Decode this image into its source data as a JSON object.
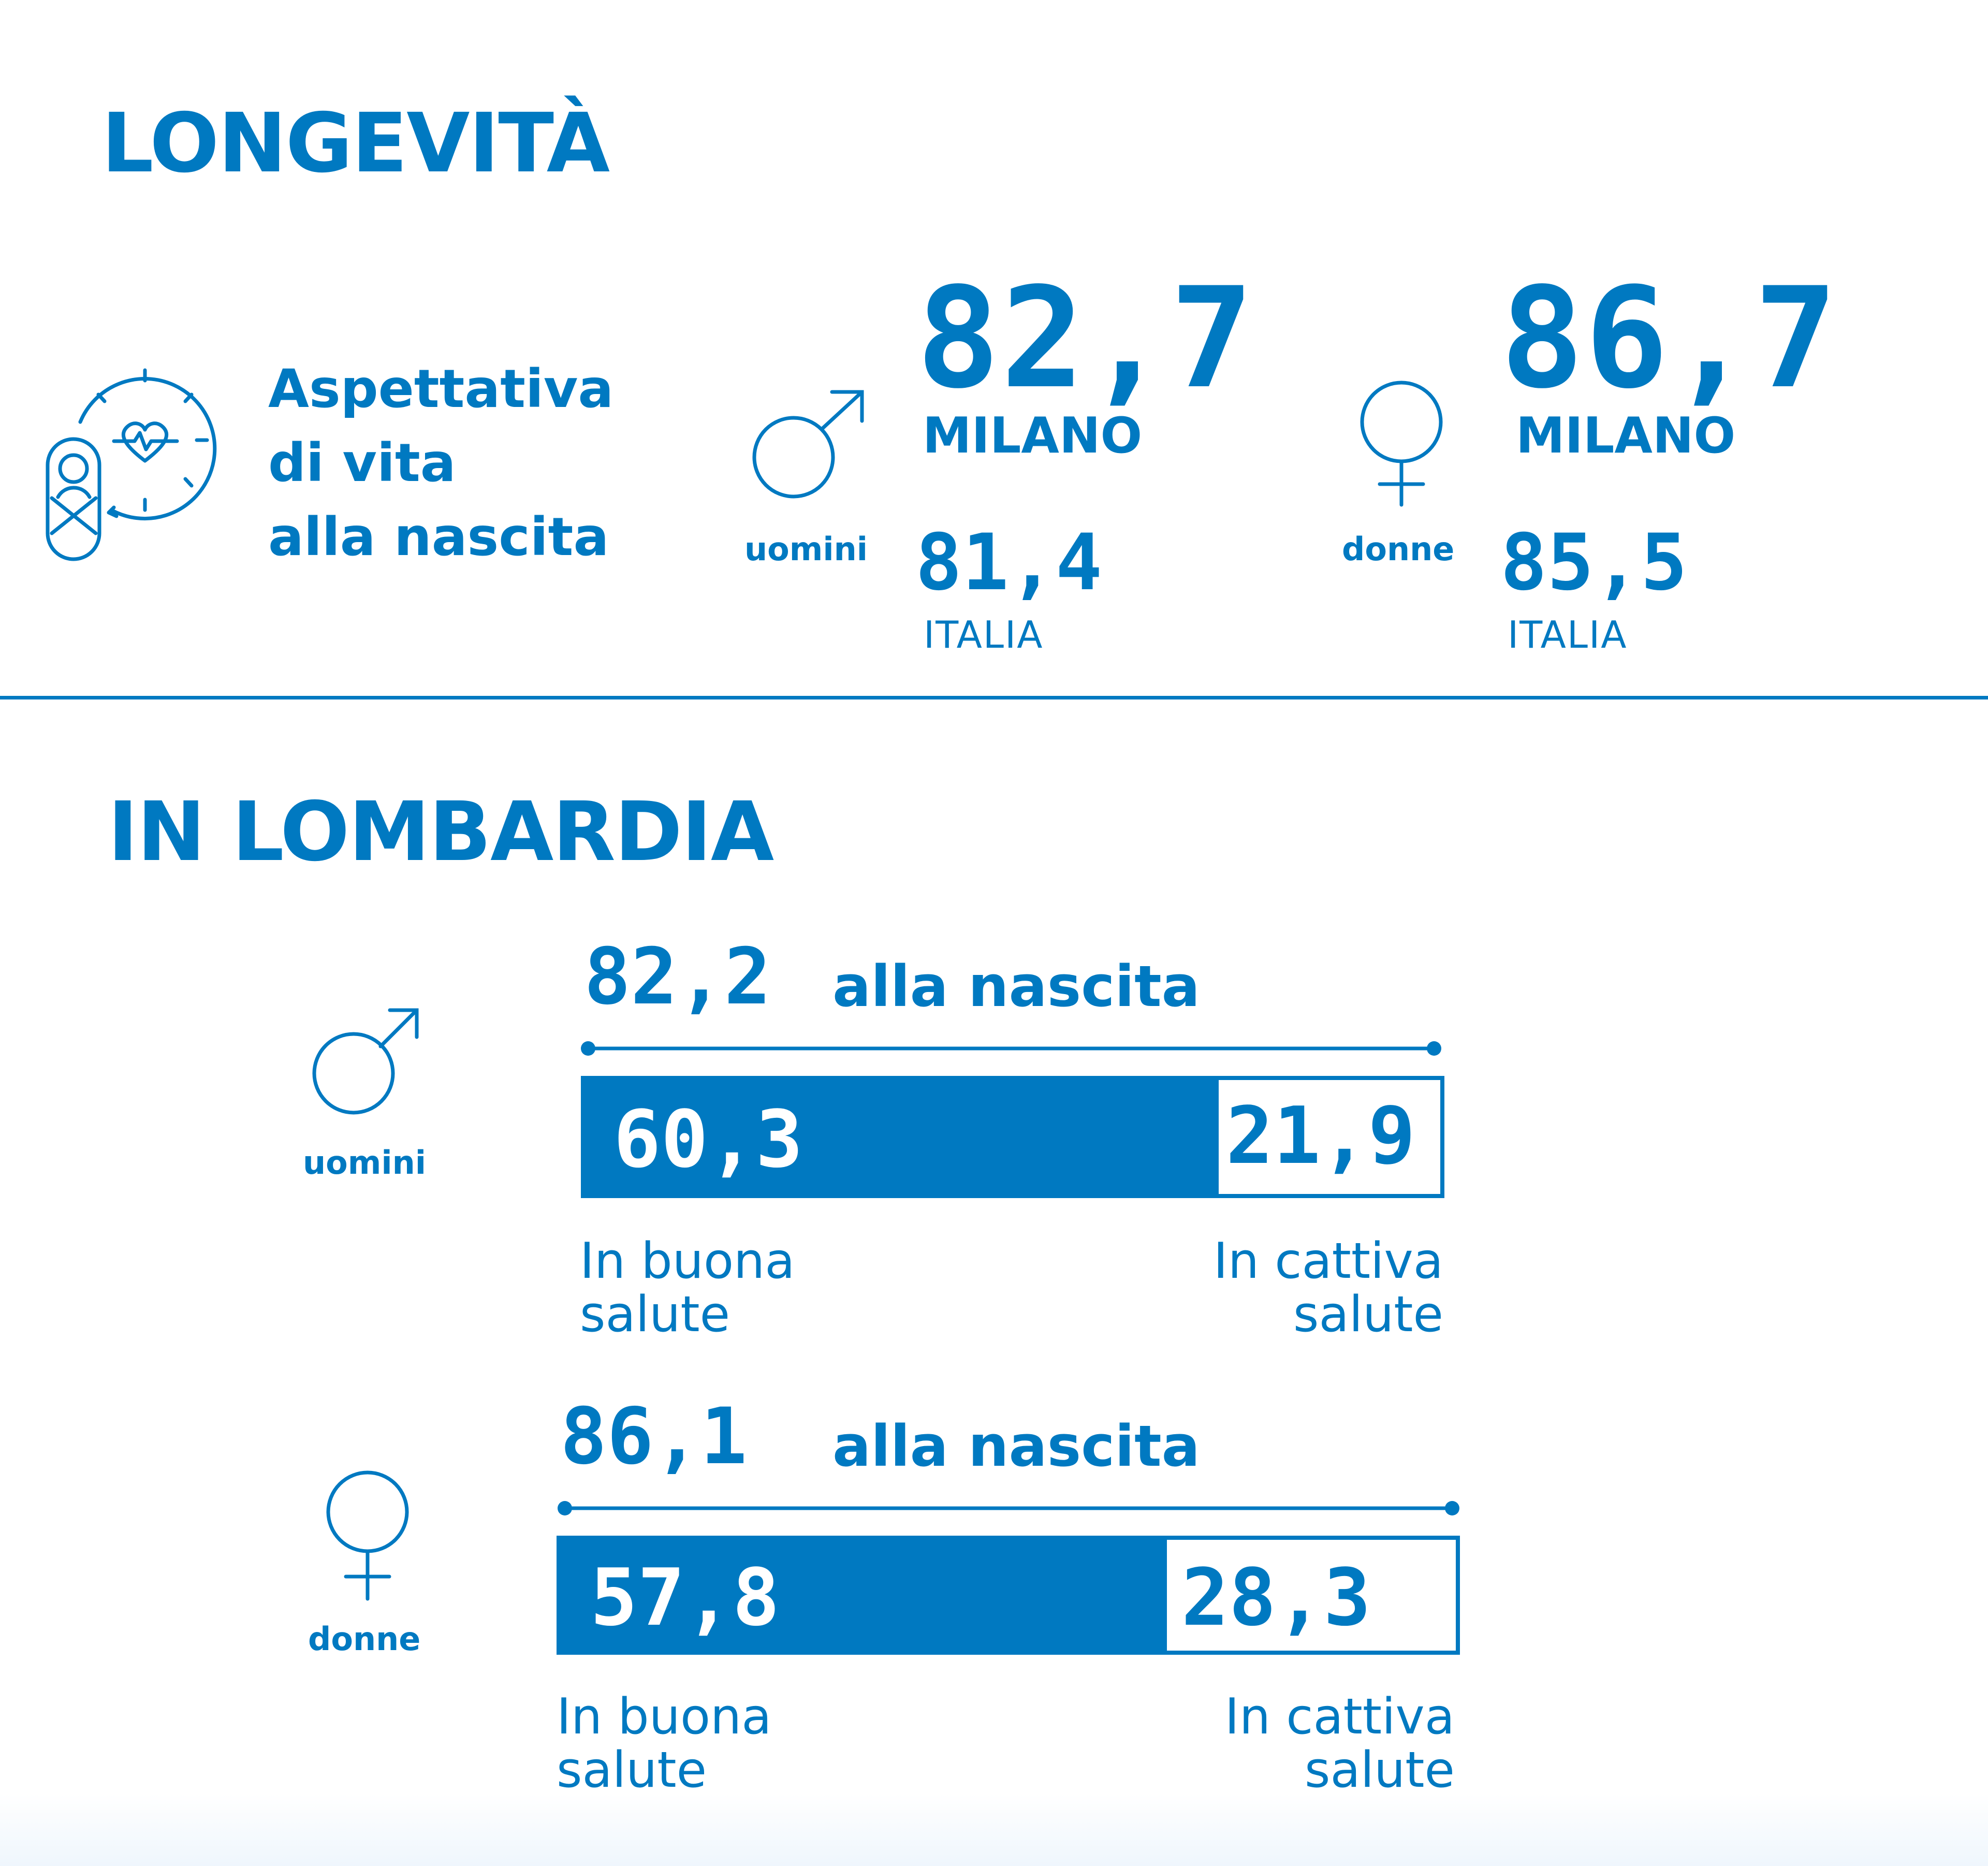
{
  "header": {
    "title": "LONGEVITÀ"
  },
  "intro": {
    "label_lines": [
      "Aspettativa",
      "di vita",
      "alla nascita"
    ]
  },
  "milano_comparison": {
    "men": {
      "gender_label": "uomini",
      "milano_value": "82,7",
      "milano_label": "MILANO",
      "italia_value": "81,4",
      "italia_label": "ITALIA"
    },
    "women": {
      "gender_label": "donne",
      "milano_value": "86,7",
      "milano_label": "MILANO",
      "italia_value": "85,5",
      "italia_label": "ITALIA"
    }
  },
  "section2": {
    "title": "IN LOMBARDIA"
  },
  "chart_data": {
    "type": "bar",
    "title": "IN LOMBARDIA",
    "categories": [
      "uomini",
      "donne"
    ],
    "series": [
      {
        "name": "In buona salute",
        "values": [
          60.3,
          57.8
        ]
      },
      {
        "name": "In cattiva salute",
        "values": [
          21.9,
          28.3
        ]
      }
    ],
    "totals": [
      82.2,
      86.1
    ],
    "stacked": true,
    "orientation": "horizontal",
    "total_suffix": "alla nascita",
    "colors": {
      "good": "#0079c1",
      "bad": "#ffffff",
      "accent": "#0079c1"
    }
  },
  "lombardia": {
    "men": {
      "gender_label": "uomini",
      "total": "82,2",
      "total_suffix": "alla nascita",
      "good": "60,3",
      "bad": "21,9",
      "good_label_lines": [
        "In buona",
        "salute"
      ],
      "bad_label_lines": [
        "In cattiva",
        "salute"
      ]
    },
    "women": {
      "gender_label": "donne",
      "total": "86,1",
      "total_suffix": "alla nascita",
      "good": "57,8",
      "bad": "28,3",
      "good_label_lines": [
        "In buona",
        "salute"
      ],
      "bad_label_lines": [
        "In cattiva",
        "salute"
      ]
    }
  },
  "icons": [
    "baby-clock-heart-icon",
    "male-symbol-icon",
    "female-symbol-icon"
  ]
}
